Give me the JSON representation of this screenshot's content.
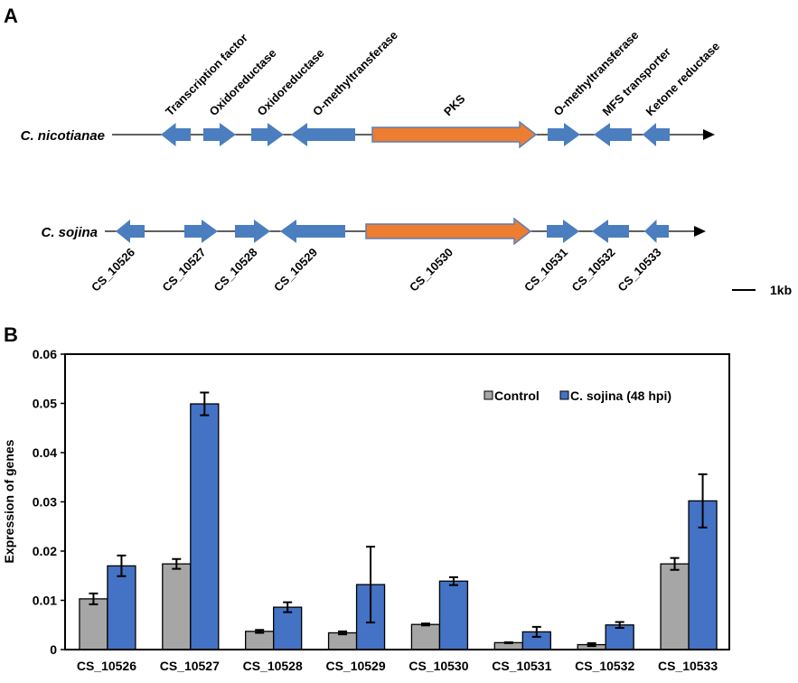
{
  "panel_a": {
    "label": "A",
    "species": [
      "C. nicotianae",
      "C. sojina"
    ],
    "nicotianae_genes": [
      {
        "label": "Transcription factor",
        "dir": "left",
        "type": "other"
      },
      {
        "label": "Oxidoreductase",
        "dir": "right",
        "type": "other"
      },
      {
        "label": "Oxidoreductase",
        "dir": "right",
        "type": "other"
      },
      {
        "label": "O-methyltransferase",
        "dir": "left",
        "type": "other"
      },
      {
        "label": "PKS",
        "dir": "right",
        "type": "pks"
      },
      {
        "label": "O-methyltransferase",
        "dir": "right",
        "type": "other"
      },
      {
        "label": "MFS transporter",
        "dir": "left",
        "type": "other"
      },
      {
        "label": "Ketone reductase",
        "dir": "left",
        "type": "other"
      }
    ],
    "sojina_genes": [
      {
        "label": "CS_10526",
        "dir": "left",
        "type": "other"
      },
      {
        "label": "CS_10527",
        "dir": "right",
        "type": "other"
      },
      {
        "label": "CS_10528",
        "dir": "right",
        "type": "other"
      },
      {
        "label": "CS_10529",
        "dir": "left",
        "type": "other"
      },
      {
        "label": "CS_10530",
        "dir": "right",
        "type": "pks"
      },
      {
        "label": "CS_10531",
        "dir": "right",
        "type": "other"
      },
      {
        "label": "CS_10532",
        "dir": "left",
        "type": "other"
      },
      {
        "label": "CS_10533",
        "dir": "left",
        "type": "other"
      }
    ],
    "scale_label": "1kb",
    "colors": {
      "gene": "#4a7ebf",
      "pks": "#ed7d31",
      "pks_border": "#5b7fb5"
    }
  },
  "panel_b": {
    "label": "B"
  },
  "chart_data": {
    "type": "bar",
    "title": "",
    "xlabel": "",
    "ylabel": "Expression of genes",
    "ylim": [
      0,
      0.06
    ],
    "yticks": [
      "0",
      "0.01",
      "0.02",
      "0.03",
      "0.04",
      "0.05",
      "0.06"
    ],
    "grid": false,
    "legend_position": "top-right",
    "categories": [
      "CS_10526",
      "CS_10527",
      "CS_10528",
      "CS_10529",
      "CS_10530",
      "CS_10531",
      "CS_10532",
      "CS_10533"
    ],
    "series": [
      {
        "name": "Control",
        "color": "#a6a6a6",
        "values": [
          0.0103,
          0.0174,
          0.0037,
          0.0034,
          0.0051,
          0.0014,
          0.001,
          0.0174
        ],
        "errors": [
          0.0011,
          0.001,
          0.0003,
          0.0003,
          0.0002,
          0.0001,
          0.0003,
          0.0012
        ]
      },
      {
        "name": "C. sojina (48 hpi)",
        "color": "#4472c4",
        "values": [
          0.017,
          0.0499,
          0.0086,
          0.0132,
          0.0139,
          0.0036,
          0.005,
          0.0302
        ],
        "errors": [
          0.0021,
          0.0023,
          0.001,
          0.0077,
          0.0008,
          0.001,
          0.0006,
          0.0054
        ]
      }
    ]
  }
}
